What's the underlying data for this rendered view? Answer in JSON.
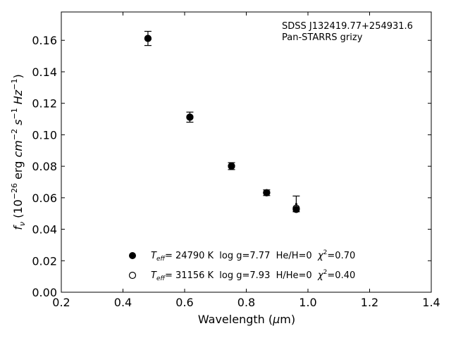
{
  "chart_data": {
    "type": "scatter",
    "annotation": [
      "SDSS J132419.77+254931.6",
      "Pan-STARRS grizy"
    ],
    "xlabel": {
      "main": "Wavelength (",
      "sym": "μ",
      "unit": "m)"
    },
    "ylabel": {
      "f": "f",
      "fsub": "ν",
      "open": " (10",
      "e1": "−26",
      "erg": " erg ",
      "cm": "cm",
      "e2": "−2",
      "s": " s",
      "e3": "−1",
      "hz": " Hz",
      "e4": "−1",
      "close": ")"
    },
    "xlim": [
      0.2,
      1.4
    ],
    "ylim": [
      0.0,
      0.178
    ],
    "xticks": [
      0.2,
      0.4,
      0.6,
      0.8,
      1.0,
      1.2,
      1.4
    ],
    "xtick_labels": [
      "0.2",
      "0.4",
      "0.6",
      "0.8",
      "1.0",
      "1.2",
      "1.4"
    ],
    "yticks": [
      0.0,
      0.02,
      0.04,
      0.06,
      0.08,
      0.1,
      0.12,
      0.14,
      0.16
    ],
    "ytick_labels": [
      "0.00",
      "0.02",
      "0.04",
      "0.06",
      "0.08",
      "0.10",
      "0.12",
      "0.14",
      "0.16"
    ],
    "grid": false,
    "legend_position": "bottom-center",
    "observed": {
      "x": [
        0.481,
        0.617,
        0.752,
        0.866,
        0.962
      ],
      "y": [
        0.1612,
        0.1112,
        0.0801,
        0.0632,
        0.0561
      ],
      "err": [
        0.0045,
        0.0032,
        0.0022,
        0.0018,
        0.005
      ]
    },
    "series": [
      {
        "marker": "filled",
        "x": [
          0.481,
          0.617,
          0.752,
          0.866,
          0.962
        ],
        "y": [
          0.1612,
          0.1112,
          0.0801,
          0.0632,
          0.0526
        ],
        "legend": {
          "t": "T",
          "sub": "eff",
          "rest": "= 24790 K  log g=7.77  He/H=0  ",
          "chi": "χ",
          "sup": "2",
          "val": "=0.70"
        }
      },
      {
        "marker": "open",
        "x": [
          0.481,
          0.617,
          0.752,
          0.866,
          0.962
        ],
        "y": [
          0.1612,
          0.1112,
          0.0801,
          0.0632,
          0.0534
        ],
        "legend": {
          "t": "T",
          "sub": "eff",
          "rest": "= 31156 K  log g=7.93  H/He=0  ",
          "chi": "χ",
          "sup": "2",
          "val": "=0.40"
        }
      }
    ]
  }
}
